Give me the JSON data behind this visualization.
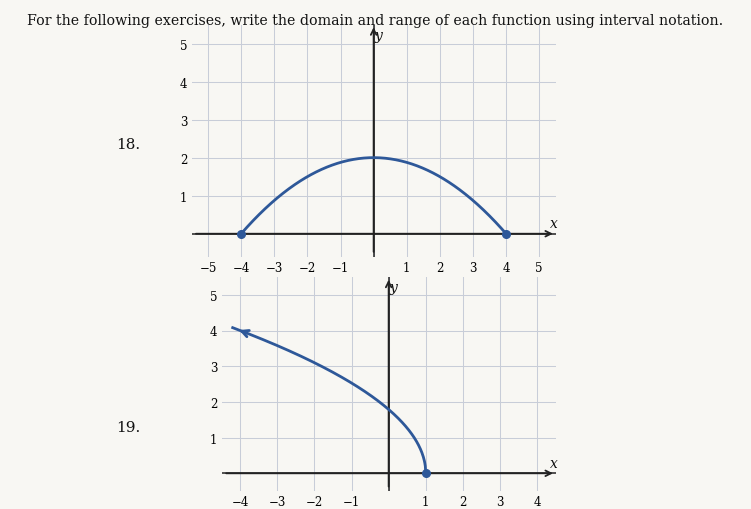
{
  "title_text": "For the following exercises, write the domain and range of each function using interval notation.",
  "label18": "18.",
  "label19": "19.",
  "curve_color": "#2e5899",
  "grid_color": "#c8cdd8",
  "axis_color": "#222222",
  "background": "#f8f7f3",
  "plot_bg": "#f8f7f3",
  "graph18": {
    "xlim": [
      -5.5,
      5.5
    ],
    "ylim": [
      -0.6,
      5.5
    ],
    "xticks": [
      -5,
      -4,
      -3,
      -2,
      -1,
      0,
      1,
      2,
      3,
      4,
      5
    ],
    "yticks": [
      1,
      2,
      3,
      4,
      5
    ],
    "x_start": -4,
    "x_end": 4,
    "peak_x": 0,
    "peak_y": 2
  },
  "graph19": {
    "xlim": [
      -4.5,
      4.5
    ],
    "ylim": [
      -0.5,
      5.5
    ],
    "xticks": [
      -4,
      -3,
      -2,
      -1,
      0,
      1,
      2,
      3,
      4
    ],
    "yticks": [
      1,
      2,
      3,
      4,
      5
    ],
    "dot_closed": [
      1,
      0
    ]
  }
}
